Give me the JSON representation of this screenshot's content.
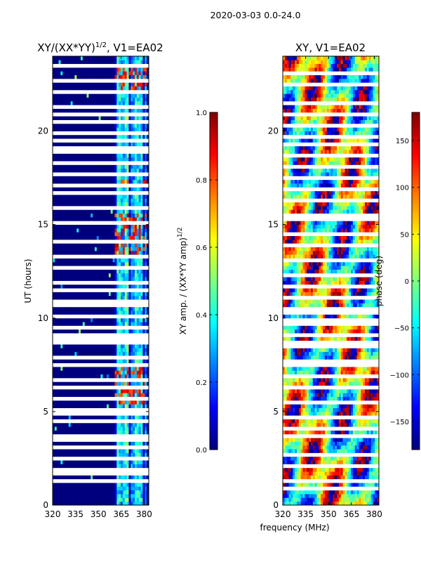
{
  "figure": {
    "suptitle": "2020-03-03 0.0-24.0",
    "shared_xlabel": "frequency (MHz)"
  },
  "colors": {
    "jet_stops": [
      "#00007f",
      "#0000ff",
      "#007fff",
      "#00ffff",
      "#7fff7f",
      "#ffff00",
      "#ff7f00",
      "#ff0000",
      "#7f0000"
    ],
    "missing": "#ffffff",
    "axis": "#000000"
  },
  "chart_data": [
    {
      "type": "heatmap",
      "title_base": "XY/(XX*YY)",
      "title_sup": "1/2",
      "title_tail": ", V1=EA02",
      "xlabel": "",
      "ylabel": "UT (hours)",
      "xlim": [
        320,
        383
      ],
      "ylim": [
        0,
        24
      ],
      "xticks": [
        320,
        335,
        350,
        365,
        380
      ],
      "yticks": [
        0,
        5,
        10,
        15,
        20
      ],
      "colorbar": {
        "label_base": "XY amp. / (XX*YY amp)",
        "label_sup": "1/2",
        "range": [
          0.0,
          1.0
        ],
        "ticks": [
          "0.0",
          "0.2",
          "0.4",
          "0.6",
          "0.8",
          "1.0"
        ]
      },
      "baseline_value": 0.0,
      "active_band_mhz": [
        361,
        382
      ],
      "active_channels_mhz": [
        {
          "freq": 363,
          "value": 0.45
        },
        {
          "freq": 366,
          "value": 0.35
        },
        {
          "freq": 369,
          "value": 0.5
        },
        {
          "freq": 372,
          "value": 0.3
        },
        {
          "freq": 375,
          "value": 0.45
        },
        {
          "freq": 378,
          "value": 0.4
        },
        {
          "freq": 381,
          "value": 0.3
        }
      ],
      "hot_rows_hours": [
        [
          5.5,
          7.5
        ],
        [
          13.5,
          15.5
        ],
        [
          17.2,
          17.5
        ],
        [
          22.0,
          23.5
        ]
      ],
      "missing_rows_hours": [
        1.3,
        1.8,
        2.0,
        2.5,
        3.1,
        3.6,
        3.8,
        4.5,
        5.0,
        5.7,
        6.3,
        6.8,
        7.6,
        7.9,
        8.7,
        9.0,
        9.5,
        10.2,
        10.8,
        11.5,
        11.9,
        12.7,
        13.3,
        14.1,
        15.2,
        16.0,
        16.8,
        17.1,
        17.8,
        18.3,
        18.9,
        19.2,
        19.6,
        20.0,
        20.5,
        20.9,
        21.3,
        22.2,
        22.8,
        23.5
      ]
    },
    {
      "type": "heatmap",
      "title": "XY, V1=EA02",
      "xlabel": "frequency (MHz)",
      "ylabel": "",
      "xlim": [
        320,
        383
      ],
      "ylim": [
        0,
        24
      ],
      "xticks": [
        320,
        335,
        350,
        365,
        380
      ],
      "yticks": [
        0,
        5,
        10,
        15,
        20
      ],
      "colorbar": {
        "label": "phase (deg)",
        "range": [
          -180,
          180
        ],
        "ticks": [
          "-150",
          "-100",
          "-50",
          "0",
          "50",
          "100",
          "150"
        ]
      },
      "value_range_deg": [
        -180,
        180
      ],
      "missing_rows_hours": [
        1.0,
        1.4,
        2.1,
        2.7,
        3.2,
        3.7,
        4.1,
        4.8,
        5.4,
        6.2,
        6.9,
        7.4,
        7.8,
        8.6,
        9.2,
        9.8,
        10.4,
        11.1,
        11.7,
        12.3,
        13.1,
        13.9,
        14.6,
        15.4,
        16.3,
        17.0,
        17.6,
        18.2,
        18.8,
        19.3,
        19.8,
        20.4,
        21.0,
        21.6,
        22.5,
        23.1
      ]
    }
  ]
}
